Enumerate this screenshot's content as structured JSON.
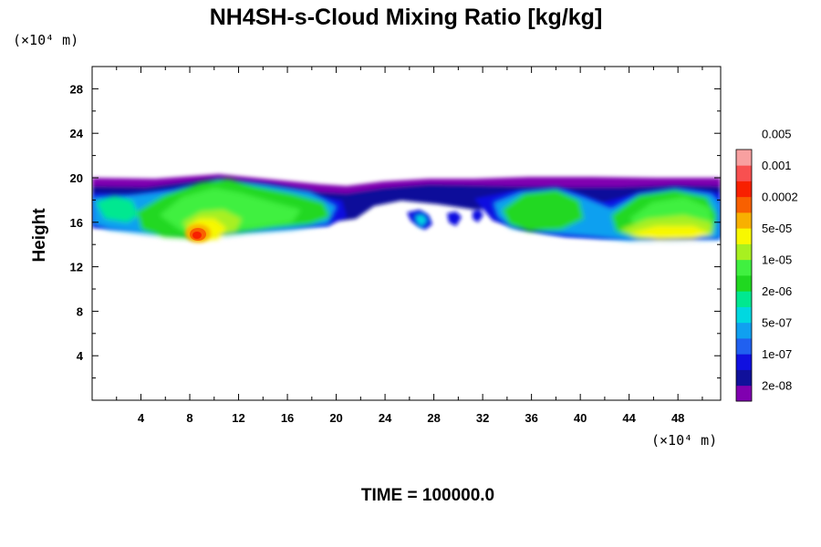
{
  "chart_data": {
    "type": "heatmap",
    "title": "NH4SH-s-Cloud Mixing Ratio [kg/kg]",
    "xlabel": "",
    "ylabel": "Height",
    "x_unit": "(×10⁴ m)",
    "y_unit": "(×10⁴ m)",
    "xlim": [
      0,
      51.5
    ],
    "ylim": [
      0,
      30
    ],
    "x_ticks": [
      4,
      8,
      12,
      16,
      20,
      24,
      28,
      32,
      36,
      40,
      44,
      48
    ],
    "y_ticks": [
      4,
      8,
      12,
      16,
      20,
      24,
      28
    ],
    "grid": false,
    "colorbar": {
      "placement": "right",
      "colors": [
        "#8000b0",
        "#10109a",
        "#1010e0",
        "#2060f0",
        "#10a0f0",
        "#00d8e0",
        "#00e890",
        "#20d820",
        "#40f040",
        "#a8f020",
        "#f8f800",
        "#f8b000",
        "#f86000",
        "#f82000",
        "#f85050",
        "#f8a0a0"
      ],
      "labels": [
        "2e-08",
        "1e-07",
        "5e-07",
        "2e-06",
        "1e-05",
        "5e-05",
        "0.0002",
        "0.001",
        "0.005"
      ]
    },
    "cloud_band": {
      "y_range_approx": [
        14.5,
        20.2
      ],
      "note_regions": [
        {
          "x": [
            0,
            20
          ],
          "level": "mostly 1e-05 to 5e-05, with maximum near 0.0002-0.001 around x≈8.5, y≈15"
        },
        {
          "x": [
            20,
            32
          ],
          "level": "thin layer 2e-08 to 1e-07 near y≈17-20"
        },
        {
          "x": [
            32,
            51.5
          ],
          "level": "mostly 1e-05 to 5e-05, reaching 0.0002 around x≈44-50, y≈15"
        }
      ]
    }
  },
  "footer": {
    "time_label": "TIME = 100000.0"
  }
}
